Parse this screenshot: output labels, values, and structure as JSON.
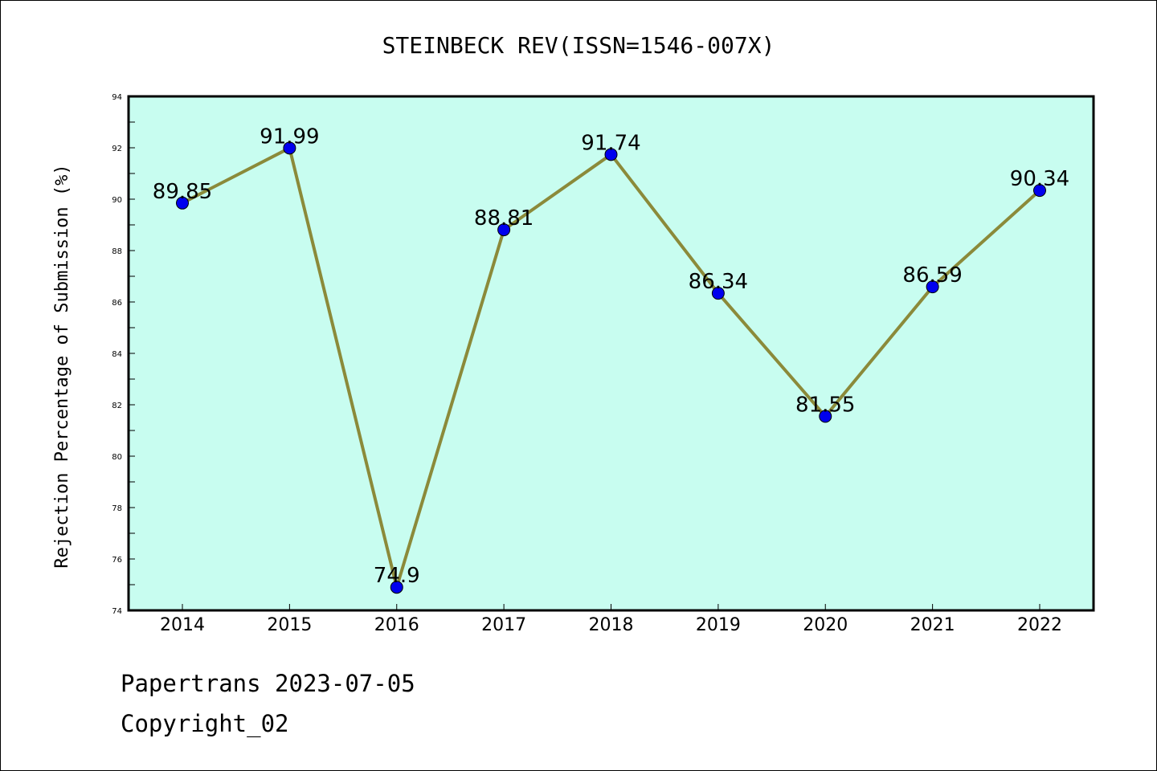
{
  "chart_data": {
    "type": "line",
    "title": "STEINBECK REV(ISSN=1546-007X)",
    "ylabel": "Rejection Percentage of Submission (%)",
    "xlabel": "",
    "categories": [
      "2014",
      "2015",
      "2016",
      "2017",
      "2018",
      "2019",
      "2020",
      "2021",
      "2022"
    ],
    "series": [
      {
        "values": [
          89.85,
          91.99,
          74.9,
          88.81,
          91.74,
          86.34,
          81.55,
          86.59,
          90.34
        ],
        "labels": [
          "89.85",
          "91.99",
          "74.9",
          "88.81",
          "91.74",
          "86.34",
          "81.55",
          "86.59",
          "90.34"
        ]
      }
    ],
    "ylim": [
      74,
      94
    ],
    "yticks": [
      74,
      76,
      78,
      80,
      82,
      84,
      86,
      88,
      90,
      92,
      94
    ],
    "grid": false,
    "legend": "none",
    "colors": {
      "plot_background": "#c8fdf0",
      "line": "#8b8a3a",
      "marker": "#0000ee",
      "axis": "#000000"
    }
  },
  "footer": {
    "line1": "Papertrans 2023-07-05",
    "line2": "Copyright_02"
  }
}
